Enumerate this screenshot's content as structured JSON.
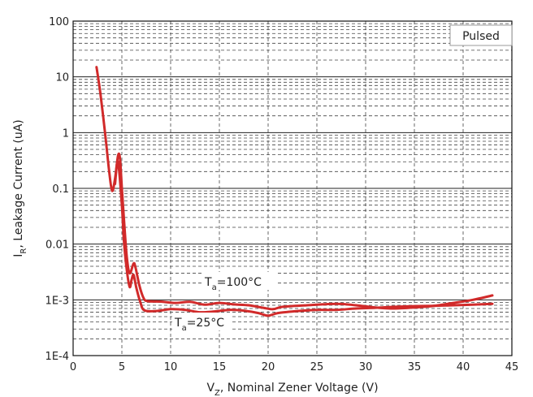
{
  "chart_data": {
    "type": "line",
    "x_axis": {
      "label_main": "V",
      "label_sub": "Z",
      "label_rest": ", Nominal Zener Voltage (V)",
      "range": [
        0,
        45
      ],
      "ticks": [
        0,
        5,
        10,
        15,
        20,
        25,
        30,
        35,
        40,
        45
      ],
      "tick_labels": [
        "0",
        "5",
        "10",
        "15",
        "20",
        "25",
        "30",
        "35",
        "40",
        "45"
      ]
    },
    "y_axis": {
      "label_main": "I",
      "label_sub": "R",
      "label_rest": ", Leakage Current (uA)",
      "scale": "log",
      "range": [
        0.0001,
        100
      ],
      "ticks": [
        0.0001,
        0.001,
        0.01,
        0.1,
        1,
        10,
        100
      ],
      "tick_labels": [
        "1E-4",
        "1E-3",
        "0.01",
        "0.1",
        "1",
        "10",
        "100"
      ]
    },
    "grid": true,
    "legend_text": "Pulsed",
    "legend_position": "top-right",
    "line_color": "#d12a2a",
    "series": [
      {
        "label_main": "T",
        "label_sub": "a",
        "label_rest": "=100°C",
        "points": [
          [
            2.4,
            15
          ],
          [
            2.8,
            5
          ],
          [
            3.3,
            0.9
          ],
          [
            3.7,
            0.2
          ],
          [
            4.0,
            0.09
          ],
          [
            4.3,
            0.15
          ],
          [
            4.6,
            0.38
          ],
          [
            4.8,
            0.35
          ],
          [
            5.0,
            0.1
          ],
          [
            5.2,
            0.03
          ],
          [
            5.5,
            0.006
          ],
          [
            5.8,
            0.003
          ],
          [
            6.2,
            0.0045
          ],
          [
            6.4,
            0.0038
          ],
          [
            6.8,
            0.0018
          ],
          [
            7.2,
            0.0011
          ],
          [
            7.6,
            0.00095
          ],
          [
            9,
            0.00093
          ],
          [
            10.5,
            0.00088
          ],
          [
            12,
            0.00092
          ],
          [
            13.5,
            0.00082
          ],
          [
            15,
            0.00088
          ],
          [
            16.5,
            0.00083
          ],
          [
            18,
            0.0008
          ],
          [
            19.5,
            0.00072
          ],
          [
            20.5,
            0.00068
          ],
          [
            21.5,
            0.00075
          ],
          [
            24,
            0.0008
          ],
          [
            27,
            0.00085
          ],
          [
            29,
            0.0008
          ],
          [
            31,
            0.00073
          ],
          [
            33,
            0.0007
          ],
          [
            35,
            0.00073
          ],
          [
            37,
            0.00078
          ],
          [
            39,
            0.00088
          ],
          [
            41,
            0.001
          ],
          [
            43,
            0.0012
          ]
        ]
      },
      {
        "label_main": "T",
        "label_sub": "a",
        "label_rest": "=25°C",
        "points": [
          [
            4.3,
            0.12
          ],
          [
            4.6,
            0.3
          ],
          [
            5.0,
            0.05
          ],
          [
            5.2,
            0.012
          ],
          [
            5.5,
            0.0035
          ],
          [
            5.8,
            0.0017
          ],
          [
            6.0,
            0.0023
          ],
          [
            6.2,
            0.0028
          ],
          [
            6.5,
            0.0016
          ],
          [
            6.9,
            0.0009
          ],
          [
            7.3,
            0.00065
          ],
          [
            8.5,
            0.00063
          ],
          [
            10,
            0.00068
          ],
          [
            11.5,
            0.00066
          ],
          [
            13,
            0.0006
          ],
          [
            14.5,
            0.00062
          ],
          [
            16,
            0.00066
          ],
          [
            17.5,
            0.00064
          ],
          [
            19,
            0.00058
          ],
          [
            20,
            0.00052
          ],
          [
            21,
            0.00058
          ],
          [
            23,
            0.00063
          ],
          [
            25,
            0.00066
          ],
          [
            27,
            0.00066
          ],
          [
            29,
            0.0007
          ],
          [
            31,
            0.00072
          ],
          [
            33,
            0.00075
          ],
          [
            35,
            0.00077
          ],
          [
            37,
            0.00078
          ],
          [
            39,
            0.0008
          ],
          [
            41,
            0.00082
          ],
          [
            43,
            0.00085
          ]
        ]
      }
    ]
  }
}
